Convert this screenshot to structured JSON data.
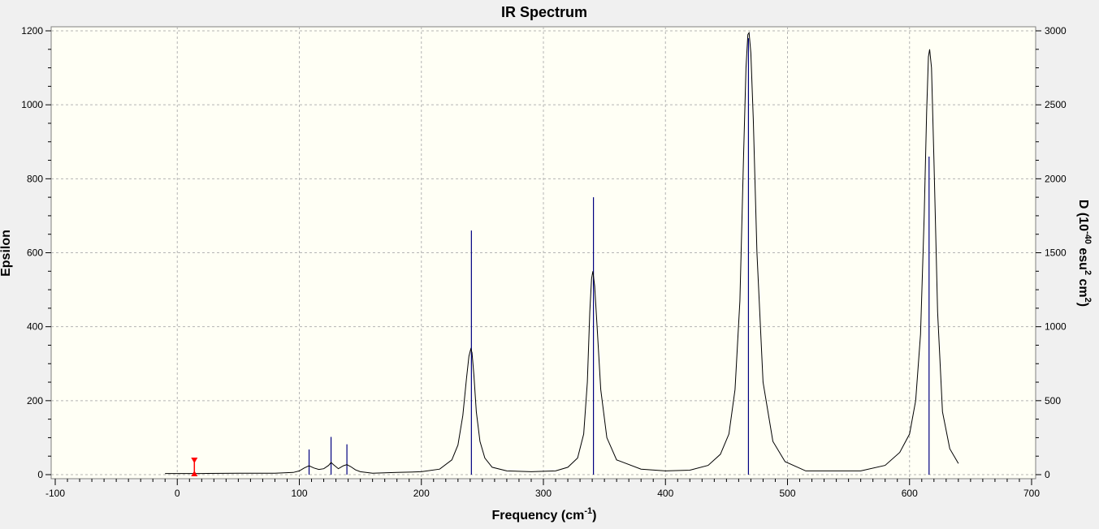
{
  "chart_data": {
    "type": "line",
    "title": "IR Spectrum",
    "xlabel": "Frequency",
    "xlabel_unit_base": "(cm",
    "xlabel_unit_exp": "-1",
    "xlabel_unit_close": ")",
    "ylabel": "Epsilon",
    "y2label_base": "D (10",
    "y2label_exp1": "-40",
    "y2label_mid": " esu",
    "y2label_exp2": "2",
    "y2label_mid2": " cm",
    "y2label_exp3": "2",
    "y2label_close": ")",
    "xlim": [
      -100,
      700
    ],
    "ylim": [
      0,
      1200
    ],
    "y2lim": [
      0,
      3000
    ],
    "x_ticks": [
      -100,
      0,
      100,
      200,
      300,
      400,
      500,
      600,
      700
    ],
    "y_ticks": [
      0,
      200,
      400,
      600,
      800,
      1000,
      1200
    ],
    "y2_ticks": [
      0,
      500,
      1000,
      1500,
      2000,
      2500,
      3000
    ],
    "grid": true,
    "colors": {
      "spectrum": "#000000",
      "sticks": "#000080",
      "marker": "#ff0000",
      "plot_bg": "#fffff5",
      "grid": "#b4b4b4"
    },
    "series": [
      {
        "x": [
          -10,
          0,
          20,
          50,
          80,
          95,
          100,
          104,
          108,
          112,
          116,
          120,
          124,
          126,
          128,
          132,
          136,
          139,
          142,
          146,
          150,
          160,
          180,
          200,
          215,
          225,
          230,
          234,
          237,
          239,
          240.5,
          241.5,
          243,
          245,
          248,
          252,
          258,
          270,
          290,
          310,
          320,
          328,
          333,
          336,
          338,
          339.5,
          340.5,
          342,
          344,
          347,
          352,
          360,
          380,
          400,
          420,
          435,
          445,
          452,
          457,
          461,
          464,
          466,
          467.5,
          468.5,
          470,
          472,
          475,
          480,
          488,
          498,
          515,
          560,
          580,
          592,
          600,
          605,
          609,
          612,
          614,
          615.5,
          616.5,
          618,
          620,
          623,
          627,
          633,
          640
        ],
        "y": [
          3,
          3,
          3,
          4,
          4,
          6,
          10,
          18,
          24,
          18,
          14,
          16,
          25,
          33,
          27,
          16,
          24,
          27,
          22,
          13,
          8,
          4,
          6,
          8,
          15,
          40,
          80,
          160,
          260,
          320,
          340,
          330,
          270,
          170,
          90,
          45,
          20,
          10,
          8,
          10,
          20,
          45,
          110,
          250,
          440,
          530,
          550,
          510,
          400,
          230,
          100,
          40,
          15,
          10,
          12,
          25,
          55,
          110,
          230,
          470,
          860,
          1100,
          1190,
          1195,
          1140,
          960,
          600,
          250,
          90,
          35,
          10,
          10,
          25,
          60,
          110,
          200,
          380,
          700,
          980,
          1130,
          1150,
          1100,
          850,
          440,
          170,
          70,
          30
        ]
      }
    ],
    "sticks": [
      {
        "x": 108,
        "y2": 170
      },
      {
        "x": 126,
        "y2": 255
      },
      {
        "x": 139,
        "y2": 205
      },
      {
        "x": 241,
        "y2": 1650
      },
      {
        "x": 341,
        "y2": 1875
      },
      {
        "x": 468,
        "y2": 2950
      },
      {
        "x": 616,
        "y2": 2150
      }
    ],
    "marker_x": 14
  }
}
